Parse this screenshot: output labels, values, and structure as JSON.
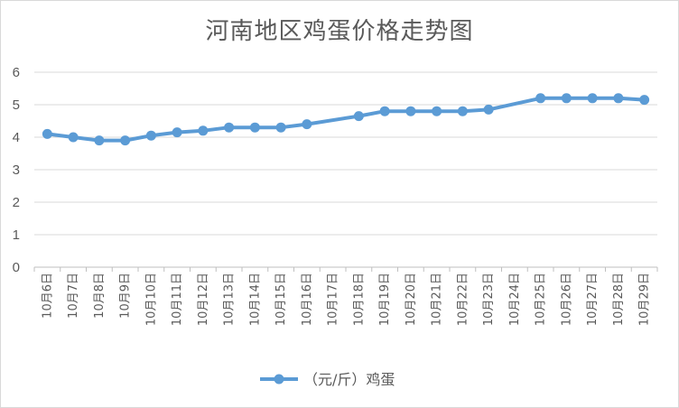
{
  "chart_data": {
    "type": "line",
    "title": "河南地区鸡蛋价格走势图",
    "xlabel": "",
    "ylabel": "",
    "ylim": [
      0,
      6
    ],
    "yticks": [
      "0",
      "1",
      "2",
      "3",
      "4",
      "5",
      "6"
    ],
    "grid": true,
    "legend_position": "bottom",
    "categories": [
      "10月6日",
      "10月7日",
      "10月8日",
      "10月9日",
      "10月10日",
      "10月11日",
      "10月12日",
      "10月13日",
      "10月14日",
      "10月15日",
      "10月16日",
      "10月17日",
      "10月18日",
      "10月19日",
      "10月20日",
      "10月21日",
      "10月22日",
      "10月23日",
      "10月24日",
      "10月25日",
      "10月26日",
      "10月27日",
      "10月28日",
      "10月29日"
    ],
    "series": [
      {
        "name": "（元/斤）鸡蛋",
        "color": "#5b9bd5",
        "values": [
          4.1,
          4.0,
          3.9,
          3.9,
          4.05,
          4.15,
          4.2,
          4.3,
          4.3,
          4.3,
          4.4,
          null,
          4.65,
          4.8,
          4.8,
          4.8,
          4.8,
          4.85,
          null,
          5.2,
          5.2,
          5.2,
          5.2,
          5.15
        ]
      }
    ]
  }
}
